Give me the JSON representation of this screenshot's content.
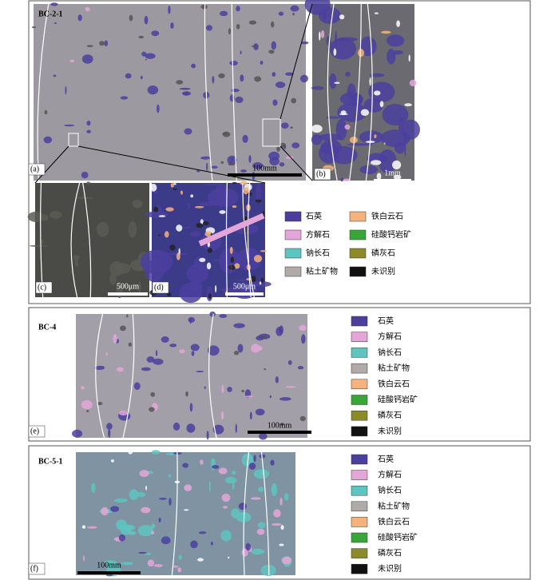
{
  "panels": [
    {
      "sample": "BC-2-1",
      "images": [
        {
          "label": "(a)",
          "scale": "100mm"
        },
        {
          "label": "(b)",
          "scale": "1mm"
        },
        {
          "label": "(c)",
          "scale": "500μm"
        },
        {
          "label": "(d)",
          "scale": "500μm"
        }
      ],
      "legend": [
        {
          "label": "石英",
          "color": "#4b3f9e"
        },
        {
          "label": "方解石",
          "color": "#e4a6d8"
        },
        {
          "label": "钠长石",
          "color": "#5ec4bf"
        },
        {
          "label": "粘土矿物",
          "color": "#b0aaa8"
        },
        {
          "label": "铁白云石",
          "color": "#f4b27c"
        },
        {
          "label": "硅酸钙岩矿",
          "color": "#3aa63a"
        },
        {
          "label": "磷灰石",
          "color": "#8b8b2a"
        },
        {
          "label": "未识别",
          "color": "#111111"
        }
      ]
    },
    {
      "sample": "BC-4",
      "images": [
        {
          "label": "(e)",
          "scale": "100mm"
        }
      ],
      "legend": [
        {
          "label": "石英",
          "color": "#4b3f9e"
        },
        {
          "label": "方解石",
          "color": "#e4a6d8"
        },
        {
          "label": "钠长石",
          "color": "#5ec4bf"
        },
        {
          "label": "粘土矿物",
          "color": "#b0aaa8"
        },
        {
          "label": "铁白云石",
          "color": "#f4b27c"
        },
        {
          "label": "硅酸钙岩矿",
          "color": "#3aa63a"
        },
        {
          "label": "磷灰石",
          "color": "#8b8b2a"
        },
        {
          "label": "未识别",
          "color": "#111111"
        }
      ]
    },
    {
      "sample": "BC-5-1",
      "images": [
        {
          "label": "(f)",
          "scale": "100mm"
        }
      ],
      "legend": [
        {
          "label": "石英",
          "color": "#4b3f9e"
        },
        {
          "label": "方解石",
          "color": "#e4a6d8"
        },
        {
          "label": "钠长石",
          "color": "#5ec4bf"
        },
        {
          "label": "粘土矿物",
          "color": "#b0aaa8"
        },
        {
          "label": "铁白云石",
          "color": "#f4b27c"
        },
        {
          "label": "硅酸钙岩矿",
          "color": "#3aa63a"
        },
        {
          "label": "磷灰石",
          "color": "#8b8b2a"
        },
        {
          "label": "未识别",
          "color": "#111111"
        }
      ]
    }
  ]
}
